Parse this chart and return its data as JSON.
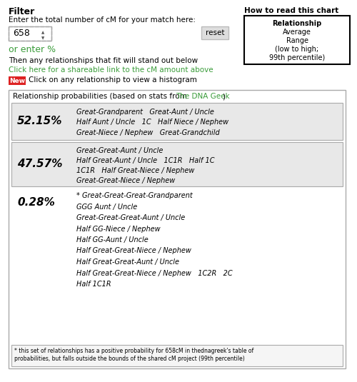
{
  "title_filter": "Filter",
  "label_enter": "Enter the total number of cM for your match here:",
  "cm_value": "658",
  "reset_label": "reset",
  "or_enter": "or enter %",
  "then_text": "Then any relationships that fit will stand out below",
  "click_link": "Click here for a shareable link to the cM amount above",
  "new_label": "New",
  "click_histogram": "Click on any relationship to view a histogram",
  "how_to_title": "How to read this chart",
  "how_to_lines": [
    "Relationship",
    "Average",
    "Range",
    "(low to high;",
    "99th percentile)"
  ],
  "rows": [
    {
      "pct": "52.15%",
      "relationships": [
        "Great-Grandparent   Great-Aunt / Uncle",
        "Half Aunt / Uncle   1C   Half Niece / Nephew",
        "Great-Niece / Nephew   Great-Grandchild"
      ],
      "bg": "#e8e8e8",
      "bordered": true
    },
    {
      "pct": "47.57%",
      "relationships": [
        "Great-Great-Aunt / Uncle",
        "Half Great-Aunt / Uncle   1C1R   Half 1C",
        "1C1R   Half Great-Niece / Nephew",
        "Great-Great-Niece / Nephew"
      ],
      "bg": "#e8e8e8",
      "bordered": true
    },
    {
      "pct": "0.28%",
      "relationships": [
        "* Great-Great-Great-Grandparent",
        "GGG Aunt / Uncle",
        "Great-Great-Great-Aunt / Uncle",
        "Half GG-Niece / Nephew",
        "Half GG-Aunt / Uncle",
        "Half Great-Great-Niece / Nephew",
        "Half Great-Great-Aunt / Uncle",
        "Half Great-Great-Niece / Nephew   1C2R   2C",
        "Half 1C1R"
      ],
      "bg": "#ffffff",
      "bordered": false
    }
  ],
  "footnote_line1": "* this set of relationships has a positive probability for 658cM in thednagreek's table of",
  "footnote_line2": "probabilities, but falls outside the bounds of the shared cM project (99th percentile)",
  "bg_color": "#ffffff",
  "table_border": "#aaaaaa",
  "green_color": "#3a9c3a",
  "link_color": "#3a9c3a",
  "text_color": "#000000",
  "gray_row_bg": "#e8e8e8",
  "new_bg": "#dd2222",
  "dna_geek_color": "#3a9c3a",
  "how_to_border": "#000000",
  "input_border_color": "#aaaaaa",
  "reset_bg": "#dddddd"
}
